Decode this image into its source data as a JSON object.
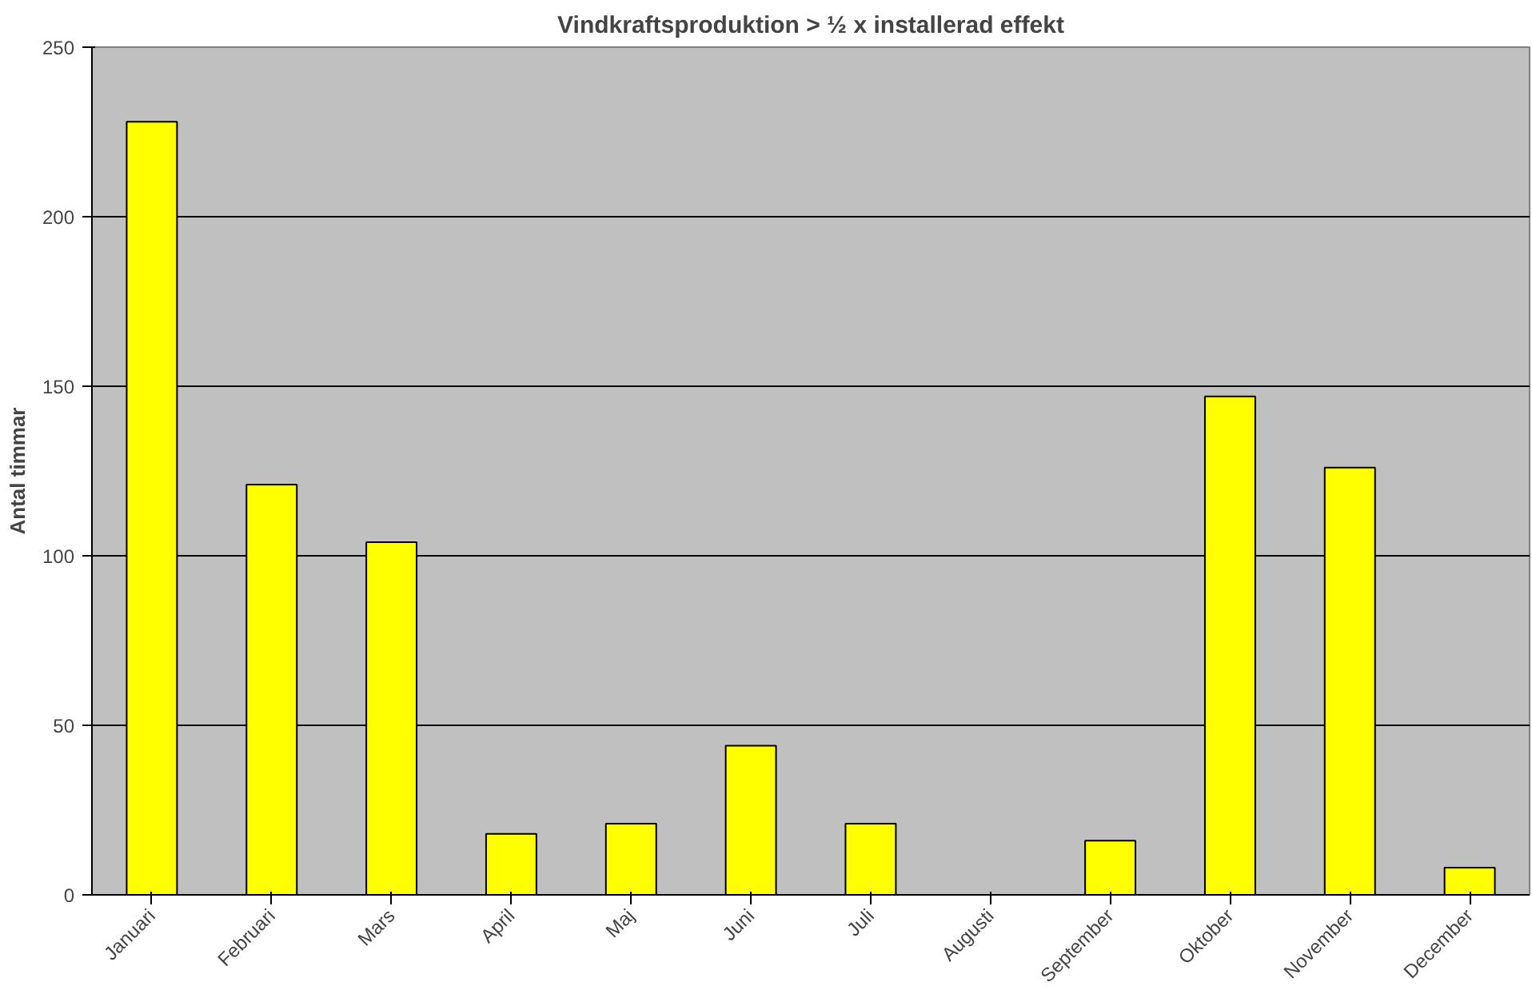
{
  "chart_data": {
    "type": "bar",
    "title": "Vindkraftsproduktion > ½ x installerad effekt",
    "ylabel": "Antal timmar",
    "categories": [
      "Januari",
      "Februari",
      "Mars",
      "April",
      "Maj",
      "Juni",
      "Juli",
      "Augusti",
      "September",
      "Oktober",
      "November",
      "December"
    ],
    "values": [
      228,
      121,
      104,
      18,
      21,
      44,
      21,
      null,
      16,
      147,
      126,
      8
    ],
    "color": "#ffff00",
    "ylim": [
      0,
      250
    ],
    "yticks": [
      0,
      50,
      100,
      150,
      200,
      250
    ],
    "grid": "y"
  }
}
